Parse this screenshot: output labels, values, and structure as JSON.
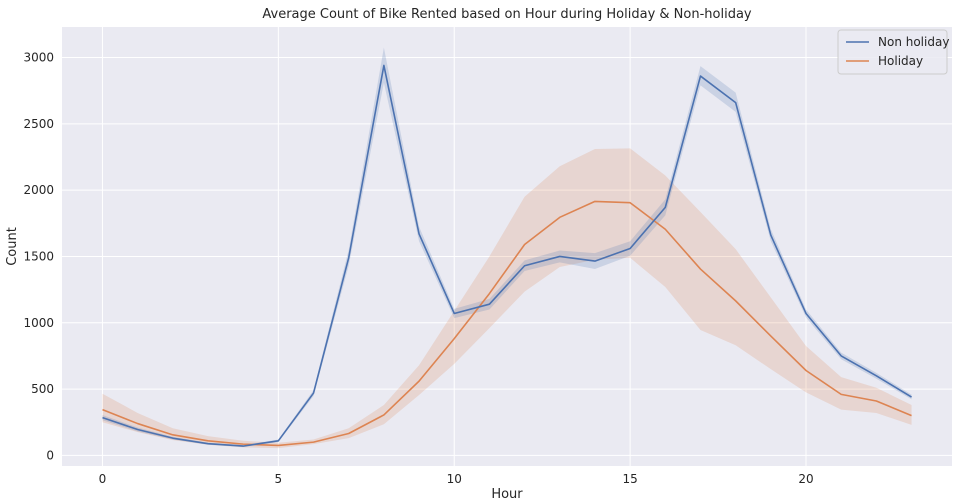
{
  "chart_data": {
    "type": "line",
    "title": "Average Count of Bike Rented based on Hour during Holiday & Non-holiday",
    "xlabel": "Hour",
    "ylabel": "Count",
    "xlim": [
      -1.15,
      24.15
    ],
    "ylim": [
      -80,
      3230
    ],
    "xticks": [
      0,
      5,
      10,
      15,
      20
    ],
    "yticks": [
      0,
      500,
      1000,
      1500,
      2000,
      2500,
      3000
    ],
    "grid": true,
    "legend_position": "top-right",
    "x": [
      0,
      1,
      2,
      3,
      4,
      5,
      6,
      7,
      8,
      9,
      10,
      11,
      12,
      13,
      14,
      15,
      16,
      17,
      18,
      19,
      20,
      21,
      22,
      23
    ],
    "series": [
      {
        "name": "Non holiday",
        "color": "#4c72b0",
        "values": [
          285,
          195,
          130,
          88,
          70,
          110,
          470,
          1490,
          2940,
          1670,
          1070,
          1140,
          1430,
          1500,
          1465,
          1560,
          1870,
          2860,
          2660,
          1660,
          1070,
          750,
          600,
          440
        ],
        "ci_low": [
          265,
          180,
          120,
          80,
          63,
          100,
          448,
          1430,
          2810,
          1615,
          1035,
          1100,
          1390,
          1455,
          1405,
          1505,
          1810,
          2790,
          2590,
          1615,
          1040,
          725,
          578,
          422
        ],
        "ci_high": [
          305,
          210,
          140,
          96,
          78,
          120,
          492,
          1550,
          3075,
          1725,
          1105,
          1180,
          1470,
          1545,
          1525,
          1615,
          1930,
          2935,
          2735,
          1705,
          1100,
          775,
          622,
          458
        ]
      },
      {
        "name": "Holiday",
        "color": "#dd8452",
        "values": [
          345,
          240,
          155,
          110,
          85,
          75,
          100,
          165,
          305,
          560,
          880,
          1220,
          1590,
          1795,
          1915,
          1905,
          1705,
          1405,
          1165,
          900,
          640,
          460,
          410,
          300
        ],
        "ci_low": [
          250,
          175,
          115,
          80,
          60,
          55,
          85,
          130,
          235,
          455,
          690,
          960,
          1235,
          1420,
          1475,
          1490,
          1270,
          945,
          830,
          650,
          475,
          345,
          320,
          230
        ],
        "ci_high": [
          465,
          320,
          205,
          145,
          110,
          95,
          120,
          205,
          380,
          680,
          1090,
          1500,
          1950,
          2180,
          2310,
          2315,
          2110,
          1835,
          1555,
          1190,
          825,
          590,
          510,
          380
        ]
      }
    ]
  }
}
